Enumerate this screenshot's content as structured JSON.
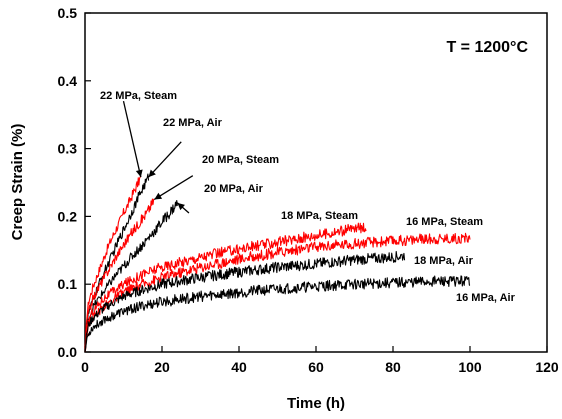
{
  "chart_data": {
    "type": "line",
    "title": "",
    "xlabel": "Time (h)",
    "ylabel": "Creep Strain (%)",
    "xlim": [
      0,
      120
    ],
    "ylim": [
      0,
      0.5
    ],
    "xticks": [
      0,
      20,
      40,
      60,
      80,
      100,
      120
    ],
    "yticks": [
      0.0,
      0.1,
      0.2,
      0.3,
      0.4,
      0.5
    ],
    "xtick_labels": [
      "0",
      "20",
      "40",
      "60",
      "80",
      "100",
      "120"
    ],
    "ytick_labels": [
      "0.0",
      "0.1",
      "0.2",
      "0.3",
      "0.4",
      "0.5"
    ],
    "grid": false,
    "colors": {
      "steam": "#ff0000",
      "air": "#000000"
    },
    "temperature_label": "T = 1200°C",
    "series": [
      {
        "name": "22 MPa, Steam",
        "color": "#ff0000",
        "x": [
          0,
          0.5,
          1,
          2,
          3,
          4,
          5,
          6,
          7,
          8,
          9,
          10,
          11,
          12,
          13,
          14,
          14.5
        ],
        "y": [
          0,
          0.055,
          0.075,
          0.095,
          0.11,
          0.125,
          0.14,
          0.155,
          0.168,
          0.18,
          0.192,
          0.205,
          0.215,
          0.228,
          0.24,
          0.252,
          0.258
        ]
      },
      {
        "name": "22 MPa, Air",
        "color": "#000000",
        "x": [
          0,
          0.5,
          1,
          2,
          3,
          4,
          5,
          6,
          7,
          8,
          9,
          10,
          11,
          12,
          13,
          14,
          15,
          16,
          16.5
        ],
        "y": [
          0,
          0.04,
          0.058,
          0.075,
          0.09,
          0.105,
          0.118,
          0.13,
          0.142,
          0.155,
          0.168,
          0.18,
          0.192,
          0.205,
          0.217,
          0.23,
          0.242,
          0.252,
          0.258
        ]
      },
      {
        "name": "20 MPa, Steam",
        "color": "#ff0000",
        "x": [
          0,
          0.5,
          1,
          2,
          4,
          6,
          8,
          10,
          12,
          14,
          16,
          18
        ],
        "y": [
          0,
          0.045,
          0.06,
          0.078,
          0.1,
          0.12,
          0.14,
          0.158,
          0.175,
          0.19,
          0.205,
          0.225
        ]
      },
      {
        "name": "20 MPa, Air",
        "color": "#000000",
        "x": [
          0,
          0.5,
          1,
          2,
          4,
          6,
          8,
          10,
          12,
          14,
          16,
          18,
          20,
          22,
          24
        ],
        "y": [
          0,
          0.035,
          0.05,
          0.065,
          0.082,
          0.098,
          0.113,
          0.126,
          0.14,
          0.152,
          0.165,
          0.178,
          0.192,
          0.205,
          0.22
        ]
      },
      {
        "name": "18 MPa, Steam",
        "color": "#ff0000",
        "x": [
          0,
          0.5,
          1,
          2,
          5,
          10,
          15,
          20,
          30,
          40,
          50,
          60,
          70,
          73
        ],
        "y": [
          0,
          0.035,
          0.048,
          0.06,
          0.08,
          0.1,
          0.115,
          0.125,
          0.14,
          0.152,
          0.162,
          0.172,
          0.182,
          0.185
        ]
      },
      {
        "name": "16 MPa, Steam",
        "color": "#ff0000",
        "x": [
          0,
          0.5,
          1,
          2,
          5,
          10,
          15,
          20,
          30,
          40,
          50,
          60,
          70,
          80,
          90,
          100
        ],
        "y": [
          0,
          0.03,
          0.04,
          0.05,
          0.068,
          0.088,
          0.1,
          0.11,
          0.125,
          0.137,
          0.147,
          0.155,
          0.16,
          0.164,
          0.167,
          0.168
        ]
      },
      {
        "name": "18 MPa, Air",
        "color": "#000000",
        "x": [
          0,
          0.5,
          1,
          2,
          5,
          10,
          15,
          20,
          30,
          40,
          50,
          60,
          70,
          80,
          83
        ],
        "y": [
          0,
          0.03,
          0.04,
          0.05,
          0.065,
          0.082,
          0.092,
          0.1,
          0.11,
          0.118,
          0.125,
          0.13,
          0.136,
          0.14,
          0.142
        ]
      },
      {
        "name": "16 MPa, Air",
        "color": "#000000",
        "x": [
          0,
          0.5,
          1,
          2,
          5,
          10,
          15,
          20,
          30,
          40,
          50,
          60,
          70,
          80,
          90,
          100
        ],
        "y": [
          0,
          0.02,
          0.028,
          0.036,
          0.048,
          0.06,
          0.068,
          0.074,
          0.082,
          0.088,
          0.093,
          0.097,
          0.1,
          0.102,
          0.104,
          0.105
        ]
      }
    ],
    "annotations": [
      {
        "text": "22 MPa, Steam",
        "series": "22 MPa, Steam",
        "from": [
          10,
          0.37
        ],
        "to": [
          14.5,
          0.258
        ]
      },
      {
        "text": "22 MPa, Air",
        "series": "22 MPa, Air",
        "from": [
          25,
          0.31
        ],
        "to": [
          16.5,
          0.258
        ]
      },
      {
        "text": "20 MPa, Steam",
        "series": "20 MPa, Steam",
        "from": [
          28,
          0.26
        ],
        "to": [
          18,
          0.225
        ]
      },
      {
        "text": "20 MPa, Air",
        "series": "20 MPa, Air",
        "from": [
          27,
          0.205
        ],
        "to": [
          24,
          0.22
        ]
      },
      {
        "text": "18 MPa, Steam",
        "series": "18 MPa, Steam"
      },
      {
        "text": "16 MPa, Steam",
        "series": "16 MPa, Steam"
      },
      {
        "text": "18 MPa, Air",
        "series": "18 MPa, Air"
      },
      {
        "text": "16 MPa, Air",
        "series": "16 MPa, Air"
      }
    ]
  }
}
